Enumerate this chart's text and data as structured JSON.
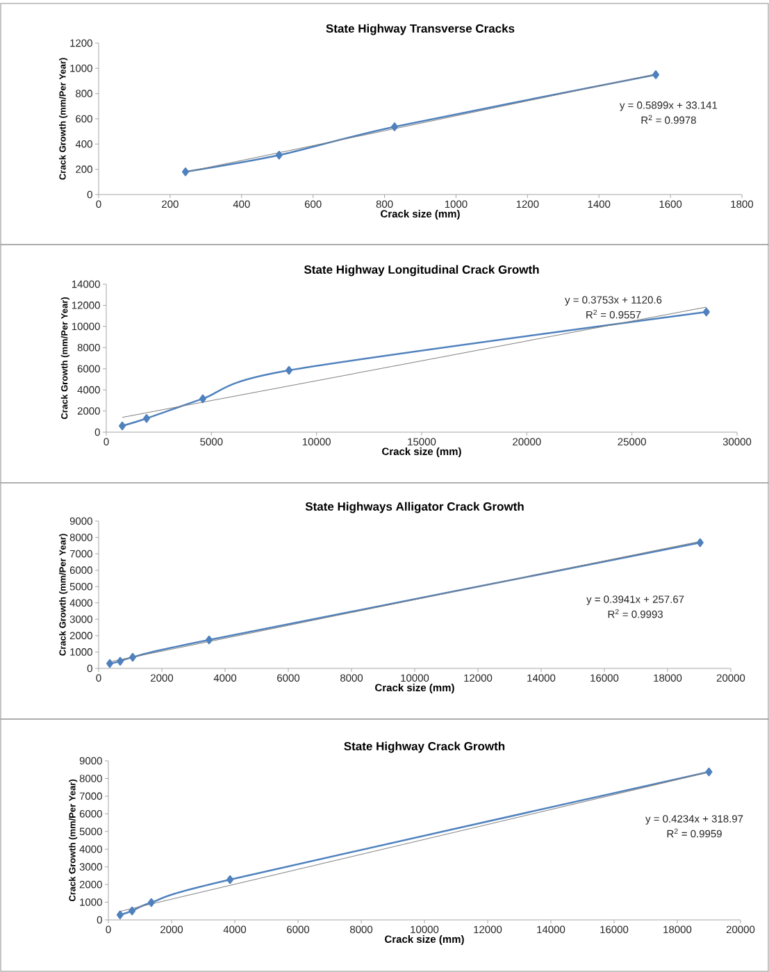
{
  "chart_data": [
    {
      "type": "line",
      "title": "State Highway Transverse Cracks",
      "xlabel": "Crack size (mm)",
      "ylabel": "Crack Growth (mm/Per Year)",
      "xlim": [
        0,
        1800
      ],
      "xticks": [
        0,
        200,
        400,
        600,
        800,
        1000,
        1200,
        1400,
        1600,
        1800
      ],
      "ylim": [
        0,
        1200
      ],
      "yticks": [
        0,
        200,
        400,
        600,
        800,
        1000,
        1200
      ],
      "marker": "diamond",
      "grid": false,
      "series": [
        {
          "color": "#4f81bd",
          "x": [
            243,
            505,
            828,
            1559
          ],
          "values": [
            180,
            312,
            537,
            950
          ]
        },
        {
          "color": "#7f7f7f",
          "marker": "none",
          "x": [
            243,
            1559
          ],
          "values": [
            177,
            953
          ]
        }
      ],
      "annotations": [
        "y = 0.5899x + 33.141",
        "R$^{2}$ = 0.9978"
      ]
    },
    {
      "type": "line",
      "title": "State Highway Longitudinal Crack Growth",
      "xlabel": "Crack size (mm)",
      "ylabel": "Crack Growth (mm/Per Year)",
      "xlim": [
        0,
        30000
      ],
      "xticks": [
        0,
        5000,
        10000,
        15000,
        20000,
        25000,
        30000
      ],
      "ylim": [
        0,
        14000
      ],
      "yticks": [
        0,
        2000,
        4000,
        6000,
        8000,
        10000,
        12000,
        14000
      ],
      "marker": "diamond",
      "grid": false,
      "series": [
        {
          "color": "#4f81bd",
          "x": [
            760,
            1916,
            4590,
            8690,
            28540
          ],
          "values": [
            590,
            1300,
            3160,
            5850,
            11370
          ]
        },
        {
          "color": "#7f7f7f",
          "marker": "none",
          "x": [
            760,
            28540
          ],
          "values": [
            1400,
            11830
          ]
        }
      ],
      "annotations": [
        "y = 0.3753x + 1120.6",
        "R$^{2}$ = 0.9557"
      ]
    },
    {
      "type": "line",
      "title": "State Highways Alligator Crack Growth",
      "xlabel": "Crack size (mm)",
      "ylabel": "Crack Growth (mm/Per Year)",
      "xlim": [
        0,
        20000
      ],
      "xticks": [
        0,
        2000,
        4000,
        6000,
        8000,
        10000,
        12000,
        14000,
        16000,
        18000,
        20000
      ],
      "ylim": [
        0,
        9000
      ],
      "yticks": [
        0,
        1000,
        2000,
        3000,
        4000,
        5000,
        6000,
        7000,
        8000,
        9000
      ],
      "marker": "diamond",
      "grid": false,
      "series": [
        {
          "color": "#4f81bd",
          "x": [
            352,
            681,
            1077,
            3495,
            19030
          ],
          "values": [
            300,
            430,
            680,
            1740,
            7680
          ]
        },
        {
          "color": "#7f7f7f",
          "marker": "none",
          "x": [
            352,
            19030
          ],
          "values": [
            400,
            7760
          ]
        }
      ],
      "annotations": [
        "y = 0.3941x + 257.67",
        "R$^{2}$ = 0.9993"
      ]
    },
    {
      "type": "line",
      "title": "State Highway Crack Growth",
      "xlabel": "Crack size (mm)",
      "ylabel": "Crack Growth (mm/Per Year)",
      "xlim": [
        0,
        20000
      ],
      "xticks": [
        0,
        2000,
        4000,
        6000,
        8000,
        10000,
        12000,
        14000,
        16000,
        18000,
        20000
      ],
      "ylim": [
        0,
        9000
      ],
      "yticks": [
        0,
        1000,
        2000,
        3000,
        4000,
        5000,
        6000,
        7000,
        8000,
        9000
      ],
      "marker": "diamond",
      "grid": false,
      "series": [
        {
          "color": "#4f81bd",
          "x": [
            370,
            750,
            1360,
            3850,
            19000
          ],
          "values": [
            280,
            510,
            980,
            2280,
            8370
          ]
        },
        {
          "color": "#7f7f7f",
          "marker": "none",
          "x": [
            370,
            19000
          ],
          "values": [
            480,
            8360
          ]
        }
      ],
      "annotations": [
        "y = 0.4234x + 318.97",
        "R$^{2}$ = 0.9959"
      ]
    }
  ]
}
